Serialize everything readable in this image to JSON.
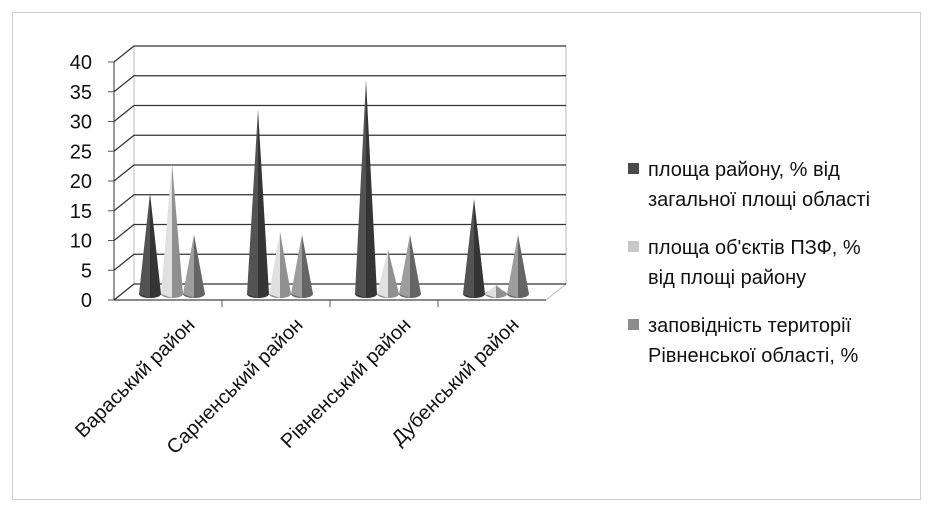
{
  "chart_data": {
    "type": "bar",
    "subtype": "3d-cone",
    "categories": [
      "Вараський район",
      "Сарненський район",
      "Рівненський район",
      "Дубенський  район"
    ],
    "series": [
      {
        "name": "площа району, % від загальної площі області",
        "values": [
          17,
          31,
          36,
          16
        ],
        "color": "#4a4a4a"
      },
      {
        "name": "площа об'єктів ПЗФ, % від площі району",
        "values": [
          22,
          10.5,
          7.5,
          1.5
        ],
        "color": "#c8c8c8"
      },
      {
        "name": "заповідність території Рівненської області, %",
        "values": [
          10,
          10,
          10,
          10
        ],
        "color": "#8c8c8c"
      }
    ],
    "y_ticks": [
      "0",
      "5",
      "10",
      "15",
      "20",
      "25",
      "30",
      "35",
      "40"
    ],
    "ylim": [
      0,
      40
    ],
    "grid": true,
    "legend_position": "right",
    "legend_lines": [
      [
        "площа району, % від",
        "загальної площі області"
      ],
      [
        "площа об'єктів ПЗФ, %",
        "від площі району"
      ],
      [
        "заповідність території",
        "Рівненської області, %"
      ]
    ]
  }
}
